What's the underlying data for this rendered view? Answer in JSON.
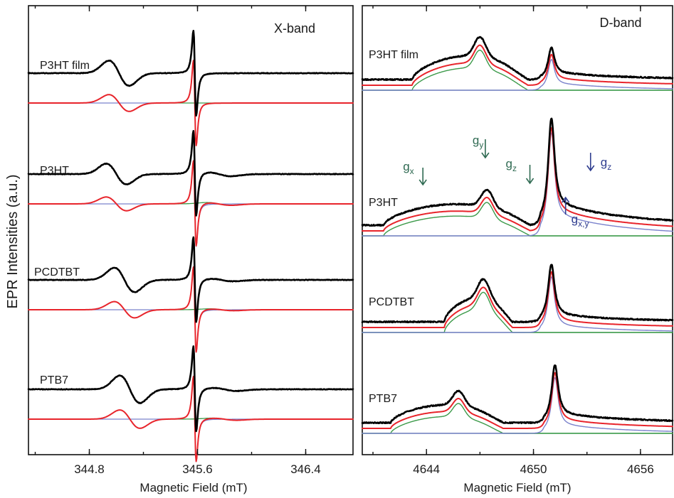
{
  "colors": {
    "measured": "#000000",
    "fit_total": "#e8242b",
    "component_blue": "#7a82cc",
    "component_green": "#3c9a4a",
    "annot_green": "#2f6a52",
    "annot_blue": "#2f3d8f"
  },
  "figure": {
    "ylabel": "EPR Intensities (a.u.)"
  },
  "chart_data": [
    {
      "type": "line",
      "band": "X-band",
      "xlabel": "Magnetic Field (mT)",
      "ylabel": "EPR Intensities (a.u.)",
      "xlim": [
        344.35,
        346.75
      ],
      "xticks": [
        344.8,
        345.6,
        346.4
      ],
      "xtick_labels": [
        "344.8",
        "345.6",
        "346.4"
      ],
      "samples": [
        {
          "name": "P3HT film",
          "label": "P3HT film",
          "amplitude": 1.0,
          "g1_center": 345.02,
          "g1_amp": 0.33,
          "g2_center": 345.58,
          "g2_amp": 1.0,
          "tail_amp": 0.0,
          "tail_center": 345.78
        },
        {
          "name": "P3HT",
          "label": "P3HT",
          "amplitude": 1.0,
          "g1_center": 345.0,
          "g1_amp": 0.27,
          "g2_center": 345.58,
          "g2_amp": 1.0,
          "tail_amp": 0.09,
          "tail_center": 345.76
        },
        {
          "name": "PCDTBT",
          "label": "PCDTBT",
          "amplitude": 1.0,
          "g1_center": 345.06,
          "g1_amp": 0.32,
          "g2_center": 345.58,
          "g2_amp": 1.0,
          "tail_amp": 0.06,
          "tail_center": 345.78
        },
        {
          "name": "PTB7",
          "label": "PTB7",
          "amplitude": 1.0,
          "g1_center": 345.1,
          "g1_amp": 0.36,
          "g2_center": 345.58,
          "g2_amp": 1.0,
          "tail_amp": 0.07,
          "tail_center": 345.8
        }
      ]
    },
    {
      "type": "line",
      "band": "D-band",
      "xlabel": "Magnetic Field (mT)",
      "ylabel": "EPR Intensities (a.u.)",
      "xlim": [
        4640.4,
        4657.8
      ],
      "xticks": [
        4644,
        4650,
        4656
      ],
      "xtick_labels": [
        "4644",
        "4650",
        "4656"
      ],
      "samples": [
        {
          "name": "P3HT film",
          "label": "P3HT film",
          "gxy_center": 4647.0,
          "gxy_peak": 1.0,
          "gxy_start": 4643.2,
          "gxy_end": 4650.0,
          "gz_center": 4651.0,
          "gz_peak": 0.55,
          "tail_amp": 0.12
        },
        {
          "name": "P3HT",
          "label": "P3HT",
          "gxy_center": 4647.4,
          "gxy_peak": 0.48,
          "gxy_start": 4641.6,
          "gxy_end": 4650.2,
          "gz_center": 4651.0,
          "gz_peak": 1.0,
          "tail_amp": 0.2
        },
        {
          "name": "PCDTBT",
          "label": "PCDTBT",
          "gxy_center": 4647.2,
          "gxy_peak": 1.0,
          "gxy_start": 4645.0,
          "gxy_end": 4649.0,
          "gz_center": 4651.0,
          "gz_peak": 1.0,
          "tail_amp": 0.12
        },
        {
          "name": "PTB7",
          "label": "PTB7",
          "gxy_center": 4645.8,
          "gxy_peak": 0.75,
          "gxy_start": 4642.0,
          "gxy_end": 4648.6,
          "gz_center": 4651.2,
          "gz_peak": 1.0,
          "tail_amp": 0.15
        }
      ],
      "annotations": [
        {
          "id": "gx",
          "letter": "g",
          "sub": "x",
          "field": 4643.8,
          "direction": "down",
          "color_key": "annot_green"
        },
        {
          "id": "gy",
          "letter": "g",
          "sub": "y",
          "field": 4647.3,
          "direction": "down",
          "color_key": "annot_green"
        },
        {
          "id": "gz-green",
          "letter": "g",
          "sub": "z",
          "field": 4649.8,
          "direction": "down",
          "color_key": "annot_green"
        },
        {
          "id": "gz-blue",
          "letter": "g",
          "sub": "z",
          "field": 4653.6,
          "direction": "down",
          "color_key": "annot_blue"
        },
        {
          "id": "gxy",
          "letter": "g",
          "sub": "x,y",
          "field": 4651.8,
          "direction": "up",
          "color_key": "annot_blue"
        }
      ]
    }
  ]
}
